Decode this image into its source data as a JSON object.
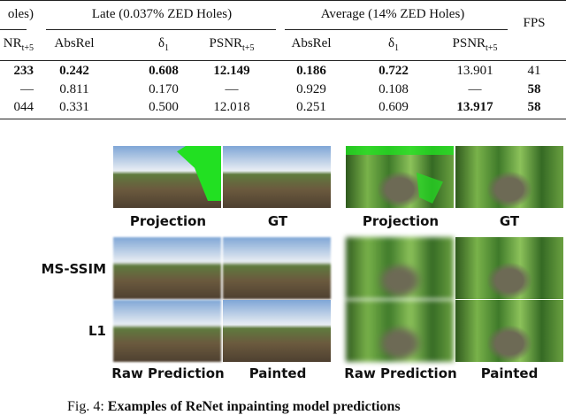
{
  "table": {
    "group_headers": [
      "oles)",
      "Late (0.037% ZED Holes)",
      "Average (14% ZED Holes)"
    ],
    "fps_header": "FPS",
    "column_headers": [
      {
        "text": "NR",
        "sub": "t+5"
      },
      {
        "text": "AbsRel"
      },
      {
        "text": "δ",
        "sub": "1"
      },
      {
        "text": "PSNR",
        "sub": "t+5"
      },
      {
        "text": "AbsRel"
      },
      {
        "text": "δ",
        "sub": "1"
      },
      {
        "text": "PSNR",
        "sub": "t+5"
      }
    ],
    "rows": [
      [
        {
          "text": "233",
          "bold": true
        },
        {
          "text": "0.242",
          "bold": true
        },
        {
          "text": "0.608",
          "bold": true
        },
        {
          "text": "12.149",
          "bold": true
        },
        {
          "text": "0.186",
          "bold": true
        },
        {
          "text": "0.722",
          "bold": true
        },
        {
          "text": "13.901",
          "bold": false
        },
        {
          "text": "41",
          "bold": false
        }
      ],
      [
        {
          "text": "—",
          "bold": false
        },
        {
          "text": "0.811",
          "bold": false
        },
        {
          "text": "0.170",
          "bold": false
        },
        {
          "text": "—",
          "bold": false
        },
        {
          "text": "0.929",
          "bold": false
        },
        {
          "text": "0.108",
          "bold": false
        },
        {
          "text": "—",
          "bold": false
        },
        {
          "text": "58",
          "bold": true
        }
      ],
      [
        {
          "text": "044",
          "bold": false
        },
        {
          "text": "0.331",
          "bold": false
        },
        {
          "text": "0.500",
          "bold": false
        },
        {
          "text": "12.018",
          "bold": false
        },
        {
          "text": "0.251",
          "bold": false
        },
        {
          "text": "0.609",
          "bold": false
        },
        {
          "text": "13.917",
          "bold": true
        },
        {
          "text": "58",
          "bold": true
        }
      ]
    ]
  },
  "figure": {
    "top_labels": [
      "Projection",
      "GT",
      "Projection",
      "GT"
    ],
    "row_labels": [
      "MS-SSIM",
      "L1"
    ],
    "bottom_labels": [
      "Raw Prediction",
      "Painted",
      "Raw Prediction",
      "Painted"
    ],
    "caption": {
      "label": "Fig. 4:",
      "text": "Examples of ReNet inpainting model predictions"
    }
  }
}
